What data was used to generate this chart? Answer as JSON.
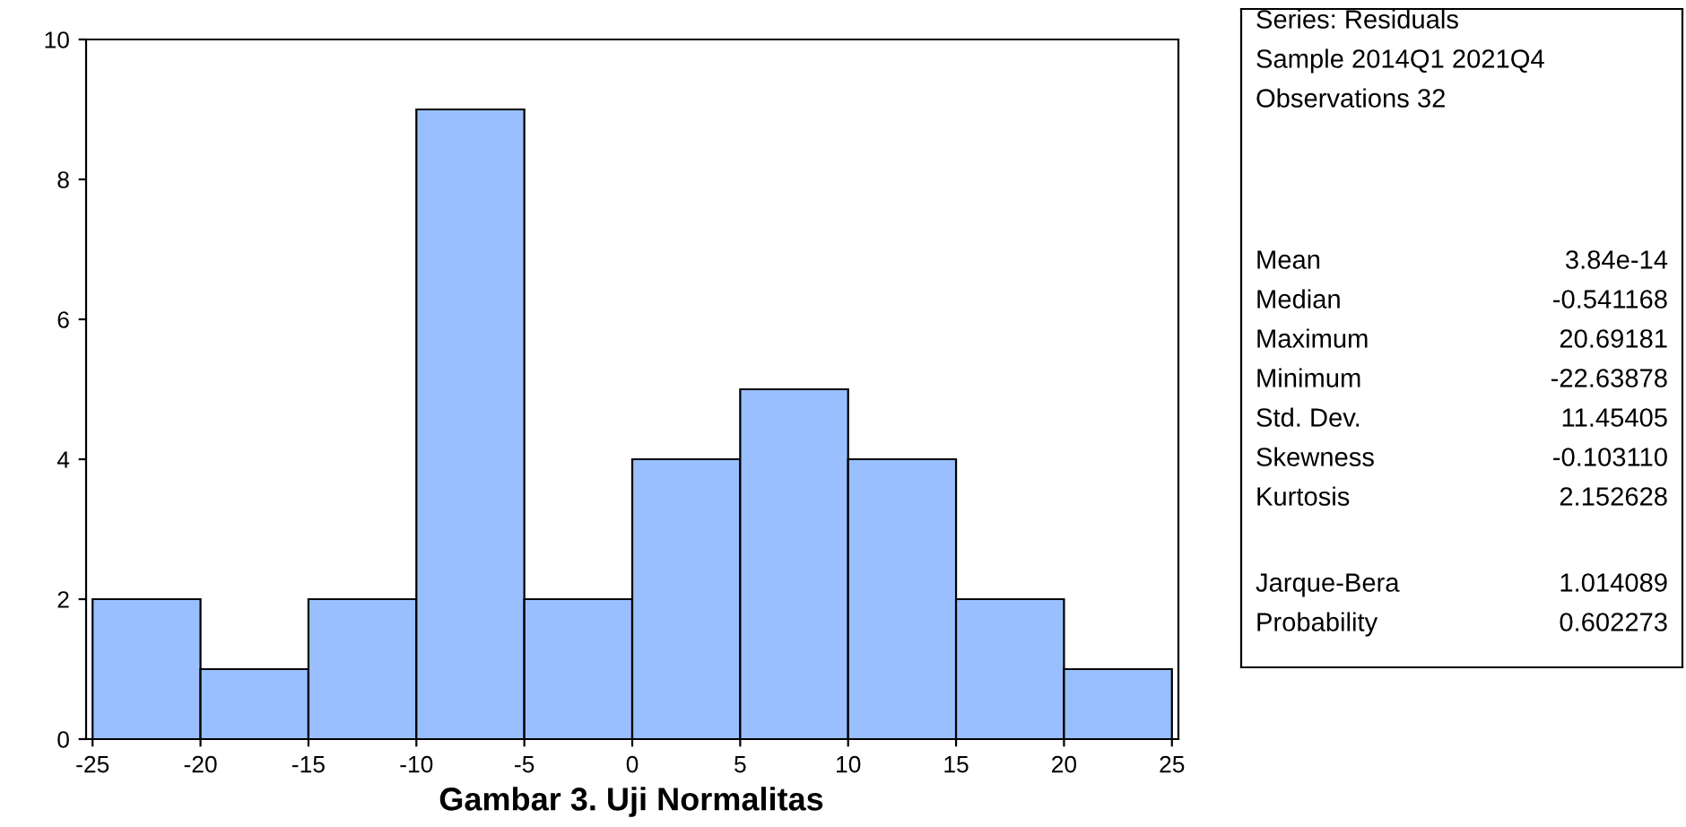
{
  "chart_data": [
    {
      "type": "histogram",
      "bins": [
        -25,
        -20,
        -15,
        -10,
        -5,
        0,
        5,
        10,
        15,
        20,
        25
      ],
      "values": [
        2,
        1,
        2,
        9,
        2,
        4,
        5,
        4,
        2,
        1
      ],
      "color": "#9ABFFF",
      "xlim": [
        -25.3,
        25.3
      ],
      "xticks": [
        -25,
        -20,
        -15,
        -10,
        -5,
        0,
        5,
        10,
        15,
        20,
        25
      ],
      "ylim": [
        0,
        10
      ],
      "yticks": [
        0,
        2,
        4,
        6,
        8,
        10
      ],
      "grid": false,
      "legend": false,
      "annotations": [
        "Gambar 3. Uji Normalitas"
      ]
    },
    {
      "type": "other",
      "annotations": [
        "Series: Residuals",
        "Sample 2014Q1 2021Q4",
        "Observations 32",
        "Mean",
        "3.84e-14",
        "Median",
        "-0.541168",
        "Maximum",
        "20.69181",
        "Minimum",
        "-22.63878",
        "Std. Dev.",
        "11.45405",
        "Skewness",
        "-0.103110",
        "Kurtosis",
        "2.152628",
        "Jarque-Bera",
        "1.014089",
        "Probability",
        "0.602273"
      ]
    }
  ]
}
